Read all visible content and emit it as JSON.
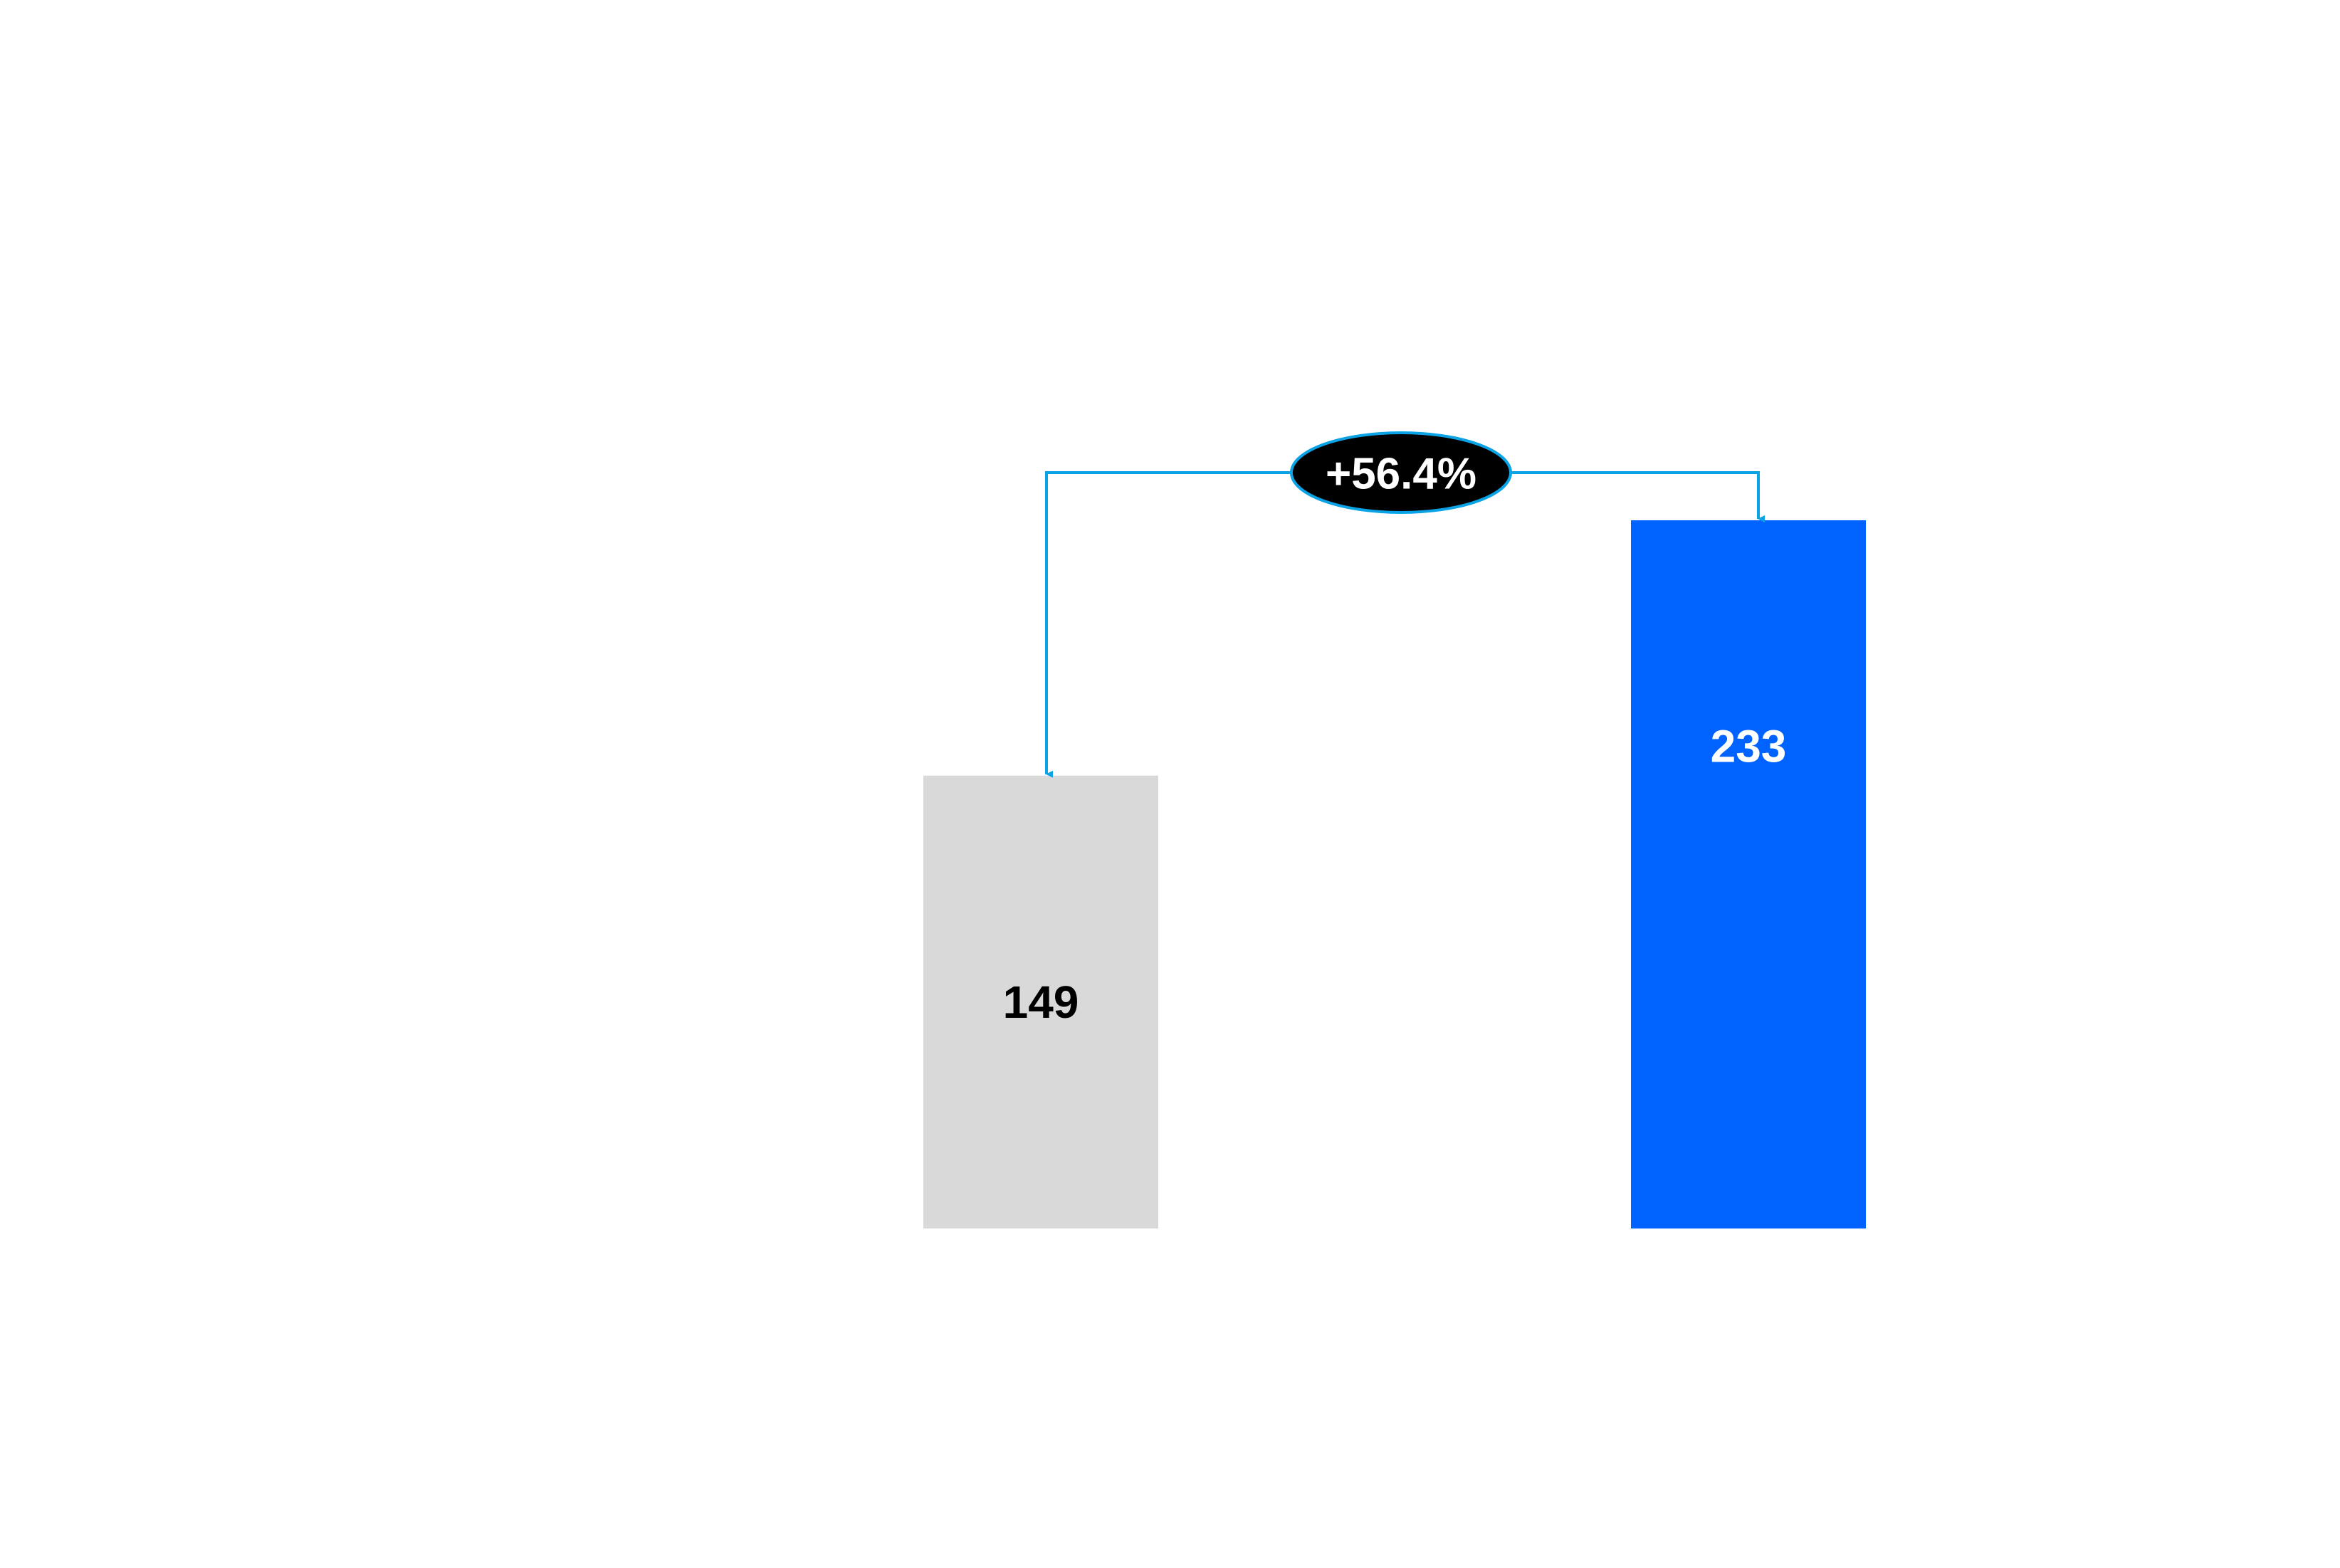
{
  "chart_data": {
    "type": "bar",
    "title": "",
    "xlabel": "",
    "ylabel": "",
    "categories": [
      "",
      ""
    ],
    "values": [
      149,
      233
    ],
    "ylim": [
      0,
      233
    ],
    "grid": false,
    "colors": [
      "#d9d9d9",
      "#0063ff"
    ],
    "value_label_colors": [
      "#000000",
      "#ffffff"
    ],
    "change": {
      "label": "+56.4%",
      "from_index": 0,
      "to_index": 1,
      "bubble_fill": "#000000",
      "bubble_text_color": "#ffffff",
      "connector_color": "#0aa3e6"
    }
  }
}
